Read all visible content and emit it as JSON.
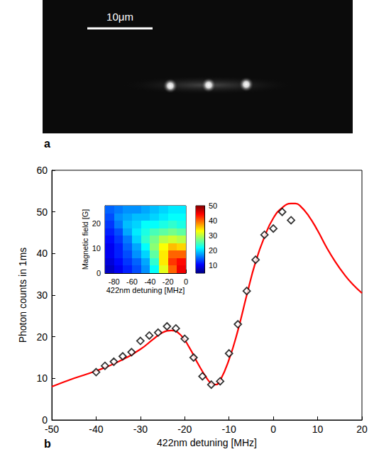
{
  "image_panel": {
    "label": "a",
    "scale_bar": "10μm"
  },
  "chart_data": [
    {
      "type": "line",
      "label": "b",
      "x_label": "422nm detuning [MHz]",
      "y_label": "Photon counts in 1ms",
      "xlim": [
        -50,
        20
      ],
      "xticks": [
        -50,
        -40,
        -30,
        -20,
        -10,
        0,
        10,
        20
      ],
      "ylim": [
        0,
        60
      ],
      "yticks": [
        0,
        10,
        20,
        30,
        40,
        50,
        60
      ],
      "grid": false,
      "series": [
        {
          "type": "scatter",
          "marker": "diamond",
          "color": "#000000",
          "x": [
            -40,
            -38,
            -36,
            -34,
            -32,
            -30,
            -28,
            -26,
            -24,
            -22,
            -20,
            -18,
            -16,
            -14,
            -12,
            -10,
            -8,
            -6,
            -4,
            -2,
            0,
            2,
            4
          ],
          "values": [
            11.5,
            13,
            14,
            15.3,
            16.3,
            19,
            20.3,
            21,
            22.5,
            22,
            19.5,
            15,
            10.5,
            8.5,
            9.3,
            16,
            23,
            31,
            38.5,
            44.5,
            46,
            50,
            48
          ]
        },
        {
          "type": "line",
          "line_style": "solid",
          "color": "#ff0000",
          "x": [
            -50,
            -45,
            -40,
            -35,
            -30,
            -27,
            -25,
            -23,
            -21,
            -19,
            -17,
            -15,
            -14,
            -13,
            -12,
            -10,
            -8,
            -6,
            -4,
            -2,
            0,
            2,
            4,
            5,
            6,
            8,
            10,
            12,
            14,
            16,
            18,
            20
          ],
          "values": [
            8,
            10,
            11.8,
            14,
            17,
            19.5,
            21,
            21.5,
            20.5,
            17.5,
            13.5,
            10,
            8.8,
            8.5,
            9.5,
            14.5,
            21.5,
            30,
            38,
            44,
            48.5,
            51,
            52,
            52,
            51.5,
            49,
            45.5,
            41.5,
            38,
            35,
            32.5,
            30.5
          ]
        }
      ]
    },
    {
      "type": "heatmap",
      "x_label": "422nm detuning [MHz]",
      "y_label": "Magnetic field [G]",
      "xlim": [
        -90,
        0
      ],
      "xticks": [
        -80,
        -60,
        -40,
        -20,
        0
      ],
      "ylim": [
        0,
        27
      ],
      "yticks": [
        0,
        10,
        20
      ],
      "x_edges": [
        -90,
        -80,
        -70,
        -60,
        -50,
        -40,
        -30,
        -20,
        -10,
        0
      ],
      "y_edges": [
        0,
        3,
        6,
        9,
        12,
        15,
        18,
        21,
        24,
        27
      ],
      "cells": [
        [
          8,
          10,
          12,
          14,
          17,
          22,
          32,
          40,
          45
        ],
        [
          9,
          11,
          13,
          15,
          18,
          24,
          34,
          42,
          44
        ],
        [
          10,
          12,
          14,
          17,
          20,
          26,
          34,
          40,
          40
        ],
        [
          10,
          12,
          15,
          18,
          22,
          28,
          33,
          36,
          35
        ],
        [
          11,
          13,
          16,
          20,
          24,
          27,
          30,
          31,
          30
        ],
        [
          12,
          14,
          18,
          21,
          23,
          25,
          26,
          27,
          26
        ],
        [
          13,
          16,
          19,
          20,
          22,
          22,
          23,
          24,
          23
        ],
        [
          14,
          17,
          18,
          19,
          19,
          20,
          21,
          22,
          22
        ],
        [
          15,
          16,
          17,
          17,
          18,
          19,
          20,
          21,
          21
        ]
      ],
      "colorbar_range": [
        5,
        50
      ],
      "colorbar_ticks": [
        10,
        20,
        30,
        40,
        50
      ]
    }
  ]
}
